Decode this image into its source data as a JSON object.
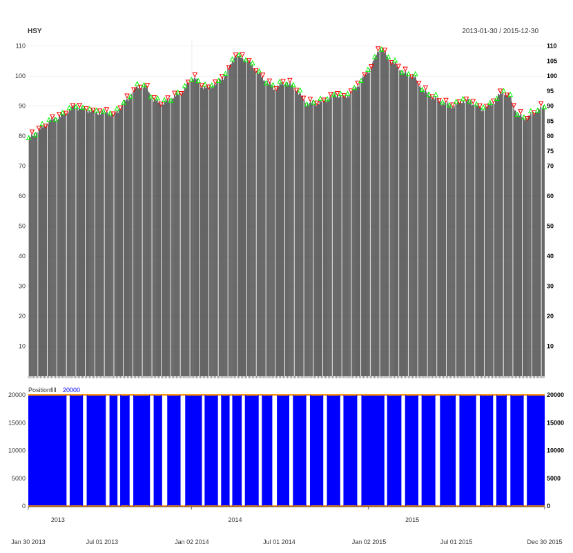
{
  "chart_data": [
    {
      "type": "bar",
      "title": "HSY",
      "date_range": "2013-01-30 / 2015-12-30",
      "ylim": [
        0,
        112
      ],
      "y_ticks_left": [
        10,
        20,
        30,
        40,
        50,
        60,
        70,
        80,
        90,
        100,
        110
      ],
      "y_ticks_right": [
        10,
        20,
        30,
        40,
        50,
        60,
        70,
        75,
        80,
        85,
        90,
        95,
        100,
        105,
        110
      ],
      "bar_color": "#333333",
      "marker_colors": {
        "buy": "#00ff00",
        "sell": "#ff0000"
      },
      "anchors": [
        [
          "2013-01-30",
          79
        ],
        [
          "2013-02-20",
          82
        ],
        [
          "2013-03-15",
          85
        ],
        [
          "2013-04-10",
          87
        ],
        [
          "2013-05-05",
          90
        ],
        [
          "2013-05-25",
          89
        ],
        [
          "2013-06-20",
          88
        ],
        [
          "2013-07-10",
          88
        ],
        [
          "2013-07-25",
          87
        ],
        [
          "2013-08-20",
          92
        ],
        [
          "2013-09-15",
          97
        ],
        [
          "2013-10-01",
          96
        ],
        [
          "2013-10-15",
          92
        ],
        [
          "2013-11-05",
          91
        ],
        [
          "2013-11-25",
          93
        ],
        [
          "2013-12-15",
          95
        ],
        [
          "2014-01-05",
          100
        ],
        [
          "2014-01-20",
          97
        ],
        [
          "2014-02-05",
          96
        ],
        [
          "2014-02-25",
          98
        ],
        [
          "2014-03-15",
          101
        ],
        [
          "2014-04-01",
          107
        ],
        [
          "2014-04-20",
          106
        ],
        [
          "2014-05-10",
          103
        ],
        [
          "2014-05-30",
          99
        ],
        [
          "2014-06-20",
          96
        ],
        [
          "2014-07-15",
          98
        ],
        [
          "2014-08-05",
          96
        ],
        [
          "2014-08-25",
          91
        ],
        [
          "2014-09-15",
          91
        ],
        [
          "2014-10-05",
          92
        ],
        [
          "2014-10-25",
          94
        ],
        [
          "2014-11-15",
          93
        ],
        [
          "2014-12-05",
          96
        ],
        [
          "2014-12-25",
          100
        ],
        [
          "2015-01-10",
          104
        ],
        [
          "2015-01-25",
          110
        ],
        [
          "2015-02-10",
          106
        ],
        [
          "2015-02-25",
          104
        ],
        [
          "2015-03-15",
          101
        ],
        [
          "2015-04-05",
          100
        ],
        [
          "2015-04-25",
          95
        ],
        [
          "2015-05-15",
          93
        ],
        [
          "2015-06-05",
          91
        ],
        [
          "2015-06-25",
          90
        ],
        [
          "2015-07-15",
          92
        ],
        [
          "2015-08-05",
          91
        ],
        [
          "2015-08-25",
          89
        ],
        [
          "2015-09-15",
          91
        ],
        [
          "2015-10-05",
          95
        ],
        [
          "2015-10-20",
          93
        ],
        [
          "2015-11-05",
          87
        ],
        [
          "2015-11-25",
          86
        ],
        [
          "2015-12-10",
          88
        ],
        [
          "2015-12-30",
          90
        ]
      ]
    },
    {
      "type": "area",
      "legend_label": "Positionfill",
      "legend_value": "20000",
      "ylim": [
        0,
        20000
      ],
      "y_ticks": [
        0,
        5000,
        10000,
        15000,
        20000
      ],
      "fill_color": "#0000ff",
      "line_color": "#ff8c00",
      "level": 20000,
      "flat_periods": [
        [
          "2013-04-18",
          "2013-04-26"
        ],
        [
          "2013-05-22",
          "2013-05-31"
        ],
        [
          "2013-07-08",
          "2013-07-17"
        ],
        [
          "2013-08-01",
          "2013-08-08"
        ],
        [
          "2013-08-26",
          "2013-09-04"
        ],
        [
          "2013-10-07",
          "2013-10-16"
        ],
        [
          "2013-11-01",
          "2013-11-13"
        ],
        [
          "2013-12-09",
          "2013-12-20"
        ],
        [
          "2014-01-22",
          "2014-01-29"
        ],
        [
          "2014-02-24",
          "2014-03-04"
        ],
        [
          "2014-03-20",
          "2014-03-27"
        ],
        [
          "2014-04-14",
          "2014-04-22"
        ],
        [
          "2014-05-19",
          "2014-05-27"
        ],
        [
          "2014-06-16",
          "2014-06-27"
        ],
        [
          "2014-07-21",
          "2014-07-30"
        ],
        [
          "2014-08-25",
          "2014-09-03"
        ],
        [
          "2014-09-29",
          "2014-10-08"
        ],
        [
          "2014-11-03",
          "2014-11-11"
        ],
        [
          "2014-12-08",
          "2014-12-18"
        ],
        [
          "2015-02-02",
          "2015-02-09"
        ],
        [
          "2015-03-09",
          "2015-03-18"
        ],
        [
          "2015-04-13",
          "2015-04-21"
        ],
        [
          "2015-05-18",
          "2015-05-29"
        ],
        [
          "2015-06-29",
          "2015-07-08"
        ],
        [
          "2015-08-10",
          "2015-08-19"
        ],
        [
          "2015-09-14",
          "2015-09-22"
        ],
        [
          "2015-10-12",
          "2015-10-21"
        ],
        [
          "2015-11-16",
          "2015-11-24"
        ]
      ]
    }
  ],
  "x_axis": {
    "start": "2013-01-30",
    "end": "2015-12-30",
    "major_ticks": [
      {
        "date": "2013-01-30",
        "label": "Jan 30 2013"
      },
      {
        "date": "2013-07-01",
        "label": "Jul 01 2013"
      },
      {
        "date": "2014-01-02",
        "label": "Jan 02 2014"
      },
      {
        "date": "2014-07-01",
        "label": "Jul 01 2014"
      },
      {
        "date": "2015-01-02",
        "label": "Jan 02 2015"
      },
      {
        "date": "2015-07-01",
        "label": "Jul 01 2015"
      },
      {
        "date": "2015-12-30",
        "label": "Dec 30 2015"
      }
    ],
    "year_labels": [
      {
        "date": "2013-04-01",
        "label": "2013"
      },
      {
        "date": "2014-04-01",
        "label": "2014"
      },
      {
        "date": "2015-04-01",
        "label": "2015"
      }
    ],
    "year_boundaries": [
      "2013-01-30",
      "2014-01-01",
      "2015-01-01",
      "2015-12-30"
    ]
  }
}
